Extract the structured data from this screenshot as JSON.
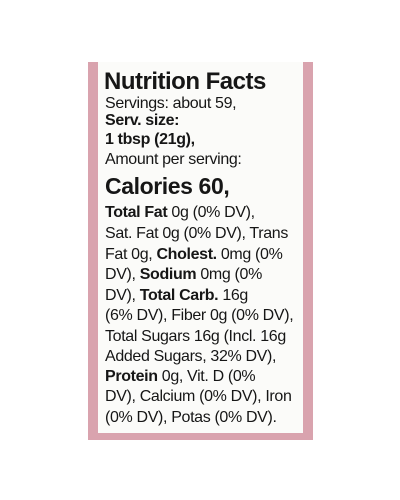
{
  "label": {
    "title": "Nutrition Facts",
    "lines": [
      [
        "Servings: about 59,"
      ],
      [
        "Serv. size:"
      ],
      [
        "1 tbsp (21g),"
      ],
      [
        "Amount per serving:"
      ],
      [
        "Calories 60,"
      ],
      [
        "Total Fat",
        " 0g (0% DV),"
      ],
      [
        "Sat. Fat 0g (0% DV), Trans"
      ],
      [
        "Fat 0g, ",
        "Cholest.",
        " 0mg (0%"
      ],
      [
        "DV), ",
        "Sodium",
        " 0mg (0%"
      ],
      [
        "DV), ",
        "Total Carb.",
        " 16g"
      ],
      [
        "(6% DV), Fiber 0g (0% DV),"
      ],
      [
        "Total Sugars 16g (Incl. 16g"
      ],
      [
        "Added Sugars, 32% DV),"
      ],
      [
        "Protein",
        " 0g, Vit. D (0%"
      ],
      [
        "DV), Calcium (0% DV), Iron"
      ],
      [
        "(0% DV), Potas (0% DV)."
      ]
    ]
  }
}
